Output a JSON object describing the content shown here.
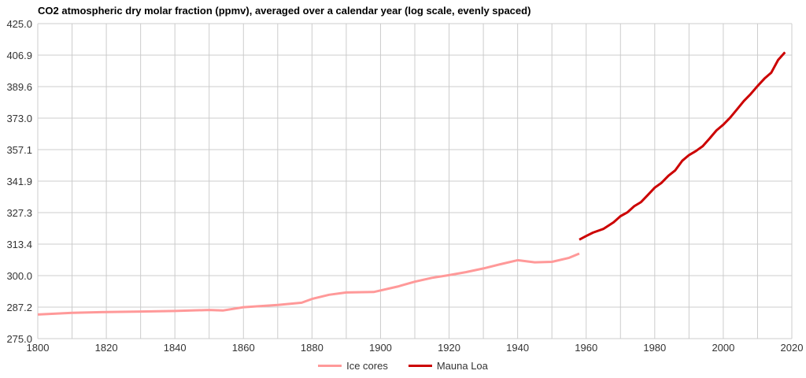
{
  "chart_data": {
    "type": "line",
    "title": "CO2 atmospheric dry molar fraction (ppmv), averaged over a calendar year (log scale, evenly spaced)",
    "xlabel": "",
    "ylabel": "",
    "xlim": [
      1800,
      2020
    ],
    "ylim": [
      275.0,
      425.0
    ],
    "y_scale": "log",
    "grid": true,
    "legend_position": "bottom",
    "x_ticks": [
      "1800",
      "1820",
      "1840",
      "1860",
      "1880",
      "1900",
      "1920",
      "1940",
      "1960",
      "1980",
      "2000",
      "2020"
    ],
    "y_ticks": [
      "425.0",
      "406.9",
      "389.6",
      "373.0",
      "357.1",
      "341.9",
      "327.3",
      "313.4",
      "300.0",
      "287.2",
      "275.0"
    ],
    "series": [
      {
        "name": "Ice cores",
        "color": "#ff9999",
        "x": [
          1800,
          1810,
          1820,
          1830,
          1840,
          1850,
          1854,
          1860,
          1870,
          1877,
          1880,
          1885,
          1890,
          1898,
          1905,
          1910,
          1915,
          1920,
          1925,
          1930,
          1935,
          1940,
          1945,
          1950,
          1955,
          1958
        ],
        "y": [
          284.3,
          285.0,
          285.3,
          285.5,
          285.7,
          286.1,
          285.9,
          287.2,
          288.1,
          289.0,
          290.5,
          292.2,
          293.1,
          293.3,
          295.5,
          297.5,
          299.1,
          300.2,
          301.5,
          303.0,
          304.8,
          306.5,
          305.6,
          305.8,
          307.5,
          309.3
        ]
      },
      {
        "name": "Mauna Loa",
        "color": "#cc0000",
        "x": [
          1958,
          1960,
          1962,
          1965,
          1968,
          1970,
          1972,
          1974,
          1976,
          1978,
          1980,
          1982,
          1984,
          1986,
          1988,
          1990,
          1992,
          1994,
          1996,
          1998,
          2000,
          2002,
          2004,
          2006,
          2008,
          2010,
          2012,
          2014,
          2016,
          2018
        ],
        "y": [
          315.3,
          316.9,
          318.4,
          320.0,
          323.0,
          325.7,
          327.4,
          330.2,
          332.1,
          335.4,
          338.8,
          341.1,
          344.4,
          347.0,
          351.6,
          354.4,
          356.4,
          358.8,
          362.6,
          366.7,
          369.6,
          373.2,
          377.5,
          381.9,
          385.6,
          389.9,
          393.9,
          397.2,
          404.2,
          408.5
        ]
      }
    ]
  },
  "legend": {
    "items": [
      "Ice cores",
      "Mauna Loa"
    ]
  }
}
